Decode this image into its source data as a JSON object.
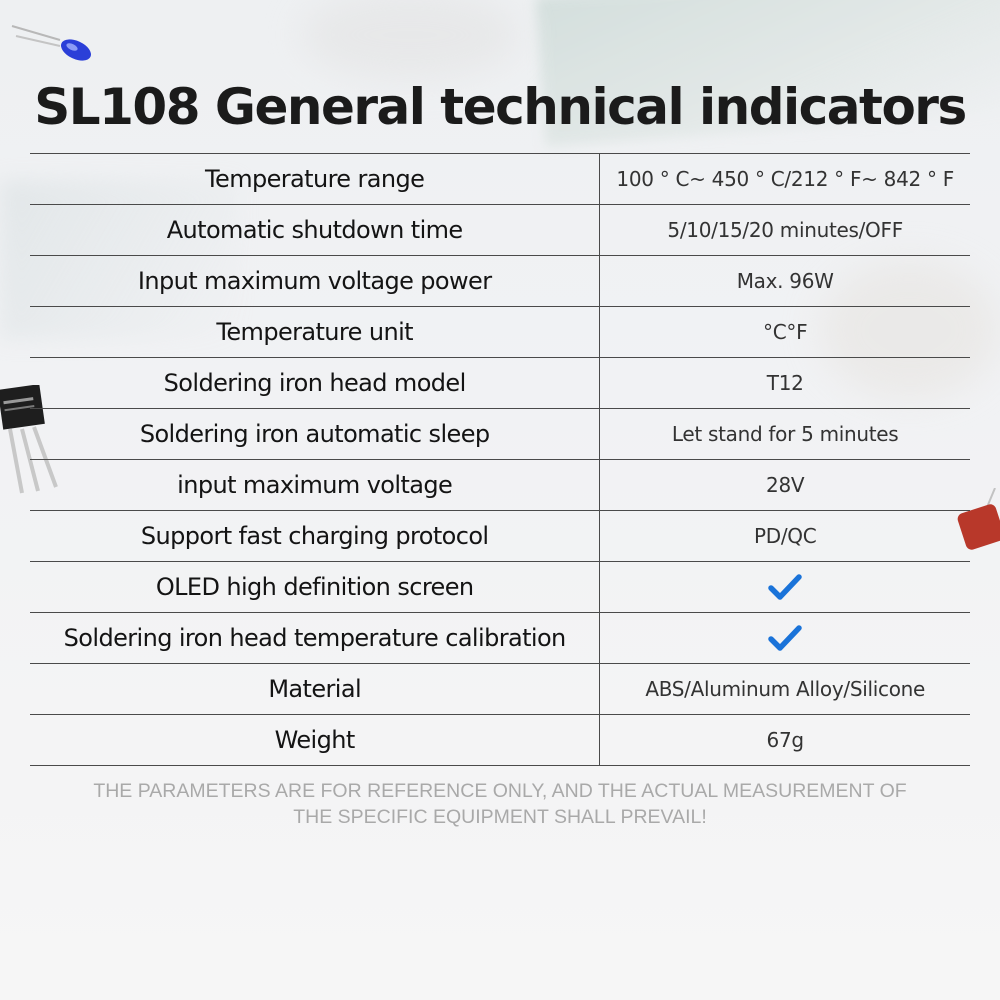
{
  "title": "SL108 General technical indicators",
  "specs": [
    {
      "label": "Temperature range",
      "value": "100 ° C~ 450 ° C/212 ° F~ 842 ° F"
    },
    {
      "label": "Automatic shutdown time",
      "value": "5/10/15/20 minutes/OFF"
    },
    {
      "label": "Input maximum voltage power",
      "value": "Max. 96W"
    },
    {
      "label": "Temperature unit",
      "value": "°C°F"
    },
    {
      "label": "Soldering iron head model",
      "value": "T12"
    },
    {
      "label": "Soldering iron automatic sleep",
      "value": "Let stand for 5 minutes"
    },
    {
      "label": "input maximum voltage",
      "value": "28V"
    },
    {
      "label": "Support fast charging protocol",
      "value": "PD/QC"
    },
    {
      "label": "OLED high definition screen",
      "value": "",
      "icon": "checkmark-icon"
    },
    {
      "label": "Soldering iron head temperature calibration",
      "value": "",
      "icon": "checkmark-icon"
    },
    {
      "label": "Material",
      "value": "ABS/Aluminum Alloy/Silicone"
    },
    {
      "label": "Weight",
      "value": "67g"
    }
  ],
  "disclaimer": {
    "line1": "THE PARAMETERS ARE FOR REFERENCE ONLY, AND THE ACTUAL MEASUREMENT OF",
    "line2": "THE SPECIFIC EQUIPMENT SHALL PREVAIL!"
  },
  "colors": {
    "check": "#1a73d9",
    "title": "#1b1b1b",
    "disclaimer": "#a9a9a9"
  }
}
